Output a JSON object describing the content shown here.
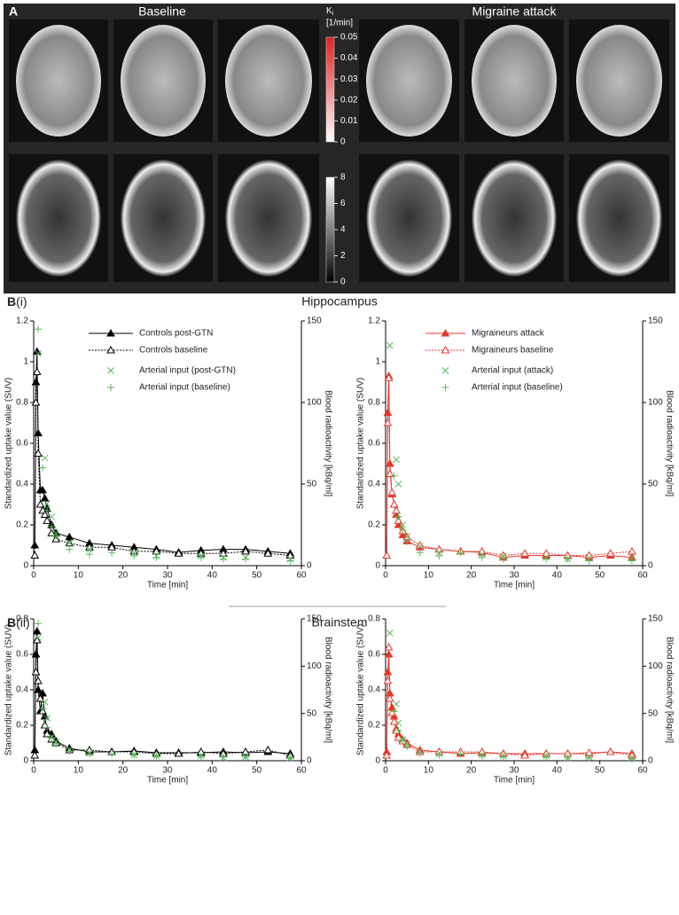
{
  "panel_a": {
    "letter": "A",
    "left_title": "Baseline",
    "right_title": "Migraine attack",
    "kinetic_colorbar": {
      "symbol": "K",
      "subscript": "i",
      "unit": "[1/min]",
      "ticks": [
        0.05,
        0.04,
        0.03,
        0.02,
        0.01,
        0
      ]
    },
    "intensity_colorbar": {
      "ticks": [
        8,
        6,
        4,
        2,
        0
      ]
    }
  },
  "section_1": {
    "letter": "B",
    "sub": "(i)",
    "title": "Hippocampus"
  },
  "section_2": {
    "letter": "B",
    "sub": "(ii)",
    "title": "Brainstem"
  },
  "chart_data": [
    {
      "type": "line",
      "xlabel": "Time [min]",
      "ylabel": "Standardized uptake value (SUV)",
      "y2label": "Blood radioactivity [kBq/ml]",
      "xlim": [
        0,
        60
      ],
      "xticks": [
        0,
        10,
        20,
        30,
        40,
        50,
        60
      ],
      "ylim": [
        0,
        1.2
      ],
      "yticks": [
        0,
        0.2,
        0.4,
        0.6,
        0.8,
        1,
        1.2
      ],
      "y2lim": [
        0,
        150
      ],
      "y2ticks": [
        0,
        50,
        100,
        150
      ],
      "legend": true,
      "x": [
        0.25,
        0.5,
        0.75,
        1,
        1.5,
        2,
        2.5,
        3,
        4,
        5,
        8,
        12.5,
        17.5,
        22.5,
        27.5,
        32.5,
        37.5,
        42.5,
        47.5,
        52.5,
        57.5
      ],
      "series": [
        {
          "name": "Controls post-GTN",
          "color": "#000000",
          "marker": "triangle-filled",
          "dash": false,
          "values": [
            0.1,
            0.9,
            1.05,
            0.65,
            0.37,
            0.37,
            0.33,
            0.28,
            0.2,
            0.16,
            0.14,
            0.11,
            0.1,
            0.09,
            0.08,
            0.065,
            0.075,
            0.08,
            0.08,
            0.07,
            0.06
          ]
        },
        {
          "name": "Controls baseline",
          "color": "#000000",
          "marker": "triangle-open",
          "dash": true,
          "values": [
            0.05,
            0.8,
            0.95,
            0.55,
            0.3,
            0.27,
            0.25,
            0.22,
            0.16,
            0.13,
            0.11,
            0.09,
            0.09,
            0.07,
            0.07,
            0.06,
            0.06,
            0.06,
            0.07,
            0.06,
            0.05
          ]
        },
        {
          "name": "Arterial input (post-GTN)",
          "color": "#5cb85c",
          "marker": "x",
          "axis": "y2",
          "values": [
            null,
            null,
            null,
            130,
            null,
            null,
            66,
            38,
            30,
            20,
            14,
            10,
            null,
            8,
            6,
            null,
            6,
            5,
            5,
            null,
            4
          ]
        },
        {
          "name": "Arterial input (baseline)",
          "color": "#5cb85c",
          "marker": "plus",
          "axis": "y2",
          "values": [
            null,
            null,
            null,
            145,
            null,
            60,
            null,
            34,
            24,
            18,
            10,
            7,
            8,
            6,
            5,
            null,
            5,
            4,
            4,
            null,
            3
          ]
        }
      ]
    },
    {
      "type": "line",
      "xlabel": "Time [min]",
      "ylabel": "Standardized uptake value (SUV)",
      "y2label": "Blood radioactivity [kBq/ml]",
      "xlim": [
        0,
        60
      ],
      "xticks": [
        0,
        10,
        20,
        30,
        40,
        50,
        60
      ],
      "ylim": [
        0,
        1.2
      ],
      "yticks": [
        0,
        0.2,
        0.4,
        0.6,
        0.8,
        1,
        1.2
      ],
      "y2lim": [
        0,
        150
      ],
      "y2ticks": [
        0,
        50,
        100,
        150
      ],
      "legend": true,
      "x": [
        0.25,
        0.5,
        0.75,
        1,
        1.5,
        2,
        2.5,
        3,
        4,
        5,
        8,
        12.5,
        17.5,
        22.5,
        27.5,
        32.5,
        37.5,
        42.5,
        47.5,
        52.5,
        57.5
      ],
      "series": [
        {
          "name": "Migraineurs attack",
          "color": "#e8362a",
          "marker": "triangle-filled",
          "dash": false,
          "values": [
            0.05,
            0.75,
            0.93,
            0.5,
            0.35,
            0.3,
            0.25,
            0.2,
            0.15,
            0.12,
            0.09,
            0.08,
            0.07,
            0.065,
            0.04,
            0.05,
            0.05,
            0.05,
            0.04,
            0.05,
            0.04
          ]
        },
        {
          "name": "Migraineurs baseline",
          "color": "#e8362a",
          "marker": "triangle-open",
          "dash": true,
          "values": [
            0.05,
            0.7,
            0.92,
            0.45,
            0.36,
            0.3,
            0.27,
            0.22,
            0.17,
            0.14,
            0.1,
            0.08,
            0.07,
            0.07,
            0.05,
            0.06,
            0.06,
            0.05,
            0.05,
            0.06,
            0.07
          ]
        },
        {
          "name": "Arterial input (attack)",
          "color": "#5cb85c",
          "marker": "x",
          "axis": "y2",
          "values": [
            null,
            null,
            null,
            135,
            null,
            null,
            65,
            50,
            25,
            18,
            12,
            8,
            null,
            7,
            6,
            null,
            5,
            4,
            5,
            null,
            5
          ]
        },
        {
          "name": "Arterial input (baseline)",
          "color": "#5cb85c",
          "marker": "plus",
          "axis": "y2",
          "values": [
            null,
            null,
            null,
            null,
            null,
            55,
            null,
            30,
            22,
            15,
            8,
            6,
            8,
            5,
            4,
            null,
            4,
            4,
            3,
            null,
            3
          ]
        }
      ]
    },
    {
      "type": "line",
      "xlabel": "Time [min]",
      "ylabel": "Standardized uptake value (SUV)",
      "y2label": "Blood radioactivity [kBq/ml]",
      "xlim": [
        0,
        60
      ],
      "xticks": [
        0,
        10,
        20,
        30,
        40,
        50,
        60
      ],
      "ylim": [
        0,
        0.8
      ],
      "yticks": [
        0,
        0.2,
        0.4,
        0.6,
        0.8
      ],
      "y2lim": [
        0,
        150
      ],
      "y2ticks": [
        0,
        50,
        100,
        150
      ],
      "legend": false,
      "x": [
        0.25,
        0.5,
        0.75,
        1,
        1.5,
        2,
        2.5,
        3,
        4,
        5,
        8,
        12.5,
        17.5,
        22.5,
        27.5,
        32.5,
        37.5,
        42.5,
        47.5,
        52.5,
        57.5
      ],
      "series": [
        {
          "color": "#000000",
          "marker": "triangle-filled",
          "dash": false,
          "values": [
            0.06,
            0.6,
            0.73,
            0.4,
            0.28,
            0.38,
            0.25,
            0.17,
            0.15,
            0.11,
            0.07,
            0.05,
            0.05,
            0.055,
            0.045,
            0.045,
            0.045,
            0.05,
            0.045,
            0.05,
            0.04
          ]
        },
        {
          "color": "#000000",
          "marker": "triangle-open",
          "dash": true,
          "values": [
            0.03,
            0.5,
            0.68,
            0.45,
            0.35,
            0.28,
            0.2,
            0.15,
            0.12,
            0.1,
            0.06,
            0.06,
            0.05,
            0.05,
            0.04,
            0.04,
            0.05,
            0.04,
            0.05,
            0.06,
            0.03
          ]
        },
        {
          "color": "#5cb85c",
          "marker": "x",
          "axis": "y2",
          "values": [
            null,
            null,
            null,
            130,
            null,
            null,
            62,
            45,
            25,
            20,
            12,
            8,
            null,
            6,
            5,
            null,
            5,
            3,
            4,
            null,
            3
          ]
        },
        {
          "color": "#5cb85c",
          "marker": "plus",
          "axis": "y2",
          "values": [
            null,
            null,
            null,
            145,
            null,
            55,
            null,
            35,
            24,
            18,
            10,
            7,
            7,
            6,
            5,
            null,
            4,
            4,
            4,
            null,
            3
          ]
        }
      ]
    },
    {
      "type": "line",
      "xlabel": "Time [min]",
      "ylabel": "Standardized uptake value (SUV)",
      "y2label": "Blood radioactivity [kBq/ml]",
      "xlim": [
        0,
        60
      ],
      "xticks": [
        0,
        10,
        20,
        30,
        40,
        50,
        60
      ],
      "ylim": [
        0,
        0.8
      ],
      "yticks": [
        0,
        0.2,
        0.4,
        0.6,
        0.8
      ],
      "y2lim": [
        0,
        150
      ],
      "y2ticks": [
        0,
        50,
        100,
        150
      ],
      "legend": false,
      "x": [
        0.25,
        0.5,
        0.75,
        1,
        1.5,
        2,
        2.5,
        3,
        4,
        5,
        8,
        12.5,
        17.5,
        22.5,
        27.5,
        32.5,
        37.5,
        42.5,
        47.5,
        52.5,
        57.5
      ],
      "series": [
        {
          "color": "#e8362a",
          "marker": "triangle-filled",
          "dash": false,
          "values": [
            0.05,
            0.5,
            0.6,
            0.38,
            0.3,
            0.25,
            0.18,
            0.15,
            0.12,
            0.1,
            0.06,
            0.05,
            0.04,
            0.045,
            0.04,
            0.04,
            0.04,
            0.04,
            0.04,
            0.05,
            0.04
          ]
        },
        {
          "color": "#e8362a",
          "marker": "triangle-open",
          "dash": true,
          "values": [
            0.03,
            0.45,
            0.64,
            0.35,
            0.27,
            0.22,
            0.17,
            0.13,
            0.11,
            0.09,
            0.05,
            0.05,
            0.05,
            0.05,
            0.04,
            0.03,
            0.04,
            0.04,
            0.045,
            0.05,
            0.03
          ]
        },
        {
          "color": "#5cb85c",
          "marker": "x",
          "axis": "y2",
          "values": [
            null,
            null,
            null,
            135,
            null,
            null,
            60,
            40,
            22,
            18,
            10,
            7,
            null,
            6,
            5,
            null,
            5,
            3,
            4,
            null,
            3
          ]
        },
        {
          "color": "#5cb85c",
          "marker": "plus",
          "axis": "y2",
          "values": [
            null,
            null,
            null,
            null,
            null,
            52,
            null,
            32,
            22,
            15,
            8,
            6,
            7,
            5,
            4,
            null,
            4,
            3,
            3,
            null,
            2
          ]
        }
      ]
    }
  ]
}
